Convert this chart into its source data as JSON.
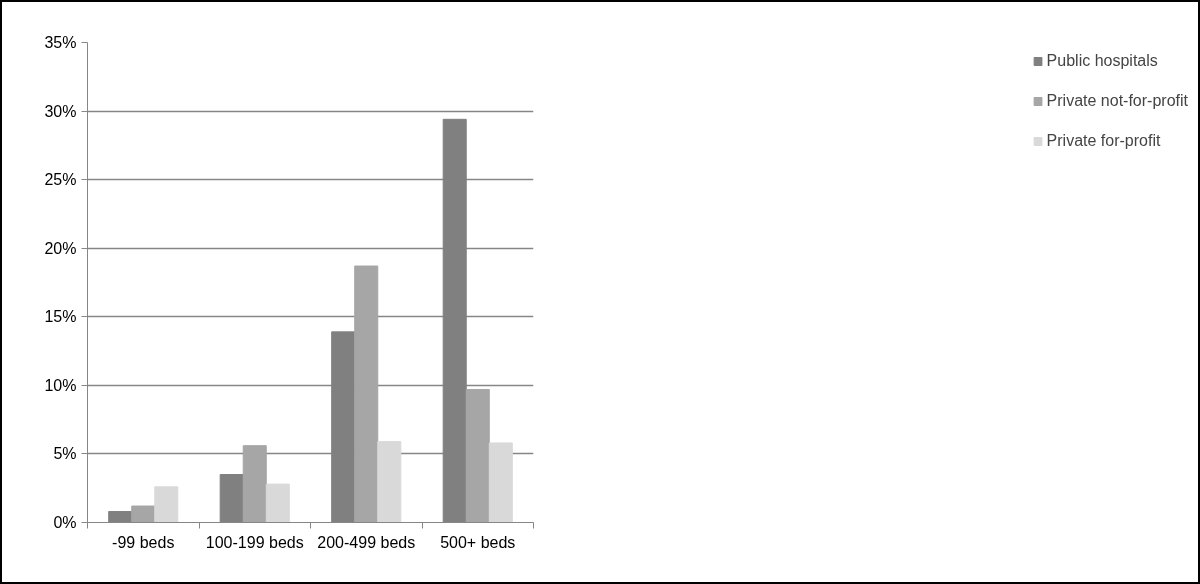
{
  "chart_data": {
    "type": "bar",
    "categories": [
      "-99 beds",
      "100-199 beds",
      "200-499 beds",
      "500+ beds"
    ],
    "series": [
      {
        "name": "Public hospitals",
        "color": "#808080",
        "values": [
          0.8,
          3.5,
          13.9,
          29.4
        ]
      },
      {
        "name": "Private not-for-profit",
        "color": "#a6a6a6",
        "values": [
          1.2,
          5.6,
          18.7,
          9.7
        ]
      },
      {
        "name": "Private for-profit",
        "color": "#d9d9d9",
        "values": [
          2.6,
          2.8,
          5.9,
          5.8
        ]
      }
    ],
    "ylim": [
      0,
      35
    ],
    "yticks": [
      {
        "value": 0,
        "label": "0%"
      },
      {
        "value": 5,
        "label": "5%"
      },
      {
        "value": 10,
        "label": "10%"
      },
      {
        "value": 15,
        "label": "15%"
      },
      {
        "value": 20,
        "label": "20%"
      },
      {
        "value": 25,
        "label": "25%"
      },
      {
        "value": 30,
        "label": "30%"
      },
      {
        "value": 35,
        "label": "35%"
      }
    ],
    "grid": "y",
    "legend": "right"
  }
}
